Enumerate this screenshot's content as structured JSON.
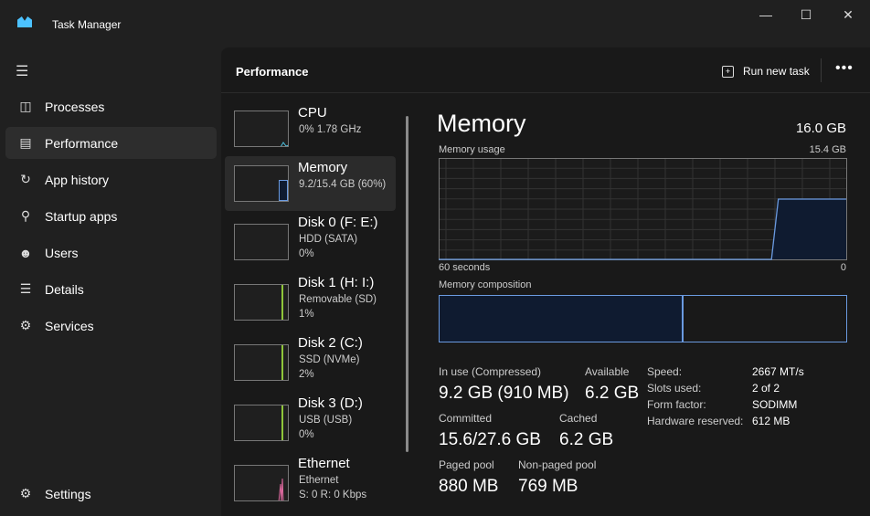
{
  "window": {
    "title": "Task Manager",
    "icon": "task-manager-logo"
  },
  "sidebar": {
    "items": [
      {
        "label": "Processes",
        "icon": "processes-icon"
      },
      {
        "label": "Performance",
        "icon": "performance-icon",
        "active": true
      },
      {
        "label": "App history",
        "icon": "history-icon"
      },
      {
        "label": "Startup apps",
        "icon": "startup-icon"
      },
      {
        "label": "Users",
        "icon": "users-icon"
      },
      {
        "label": "Details",
        "icon": "details-icon"
      },
      {
        "label": "Services",
        "icon": "services-icon"
      }
    ],
    "settings": "Settings"
  },
  "header": {
    "title": "Performance",
    "run_new_task": "Run new task"
  },
  "devices": [
    {
      "name": "CPU",
      "sub1": "0%  1.78 GHz",
      "sub2": "",
      "color": "#4cc2e0"
    },
    {
      "name": "Memory",
      "sub1": "9.2/15.4 GB (60%)",
      "sub2": "",
      "color": "#6a9ae0"
    },
    {
      "name": "Disk 0 (F: E:)",
      "sub1": "HDD (SATA)",
      "sub2": "0%",
      "color": "#8fc53a"
    },
    {
      "name": "Disk 1 (H: I:)",
      "sub1": "Removable (SD)",
      "sub2": "1%",
      "color": "#8fc53a"
    },
    {
      "name": "Disk 2 (C:)",
      "sub1": "SSD (NVMe)",
      "sub2": "2%",
      "color": "#8fc53a"
    },
    {
      "name": "Disk 3 (D:)",
      "sub1": "USB (USB)",
      "sub2": "0%",
      "color": "#8fc53a"
    },
    {
      "name": "Ethernet",
      "sub1": "Ethernet",
      "sub2": "S: 0 R: 0 Kbps",
      "color": "#e06aa0"
    }
  ],
  "memory": {
    "title": "Memory",
    "total": "16.0 GB",
    "usage_label": "Memory usage",
    "usage_max": "15.4 GB",
    "time_left": "60 seconds",
    "time_right": "0",
    "composition_label": "Memory composition",
    "in_use_fraction": 0.6,
    "usage_history_percent": [
      0,
      0,
      0,
      0,
      0,
      0,
      0,
      0,
      0,
      0,
      0,
      0,
      0,
      0,
      0,
      0,
      0,
      0,
      0,
      0,
      0,
      0,
      0,
      0,
      0,
      0,
      0,
      0,
      0,
      0,
      0,
      0,
      0,
      0,
      0,
      0,
      0,
      0,
      0,
      0,
      0,
      0,
      0,
      0,
      0,
      0,
      0,
      0,
      0,
      0,
      60,
      60,
      60,
      60,
      60,
      60,
      60,
      60,
      60,
      60,
      60
    ],
    "in_use_label": "In use (Compressed)",
    "in_use": "9.2 GB (910 MB)",
    "available_label": "Available",
    "available": "6.2 GB",
    "committed_label": "Committed",
    "committed": "15.6/27.6 GB",
    "cached_label": "Cached",
    "cached": "6.2 GB",
    "paged_label": "Paged pool",
    "paged": "880 MB",
    "nonpaged_label": "Non-paged pool",
    "nonpaged": "769 MB",
    "specs": [
      {
        "k": "Speed:",
        "v": "2667 MT/s"
      },
      {
        "k": "Slots used:",
        "v": "2 of 2"
      },
      {
        "k": "Form factor:",
        "v": "SODIMM"
      },
      {
        "k": "Hardware reserved:",
        "v": "612 MB"
      }
    ]
  }
}
